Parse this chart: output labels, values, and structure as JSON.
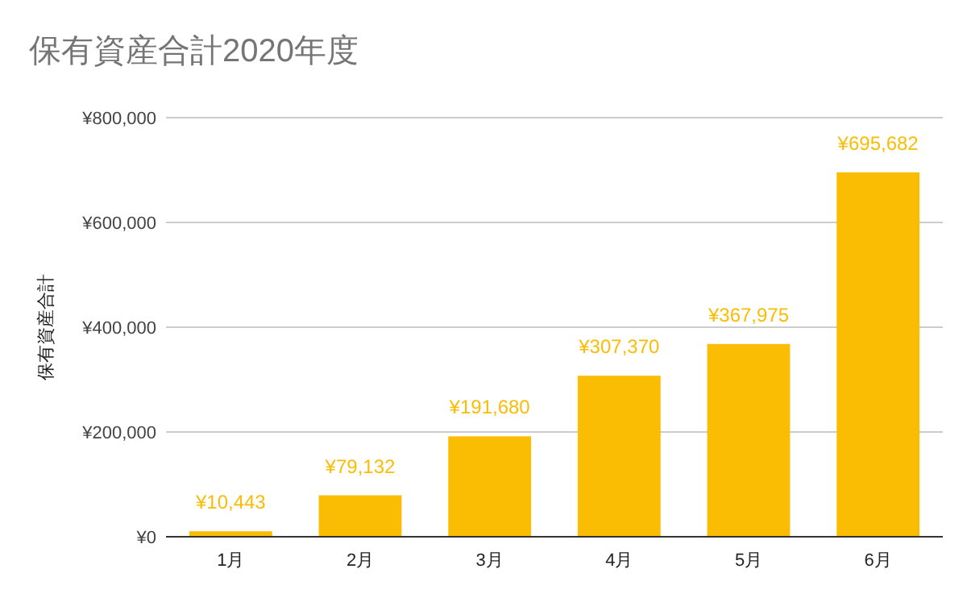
{
  "chart_data": {
    "type": "bar",
    "title": "保有資産合計2020年度",
    "ylabel": "保有資産合計",
    "categories": [
      "1月",
      "2月",
      "3月",
      "4月",
      "5月",
      "6月"
    ],
    "values": [
      10443,
      79132,
      191680,
      307370,
      367975,
      695682
    ],
    "color": "#fbbc04",
    "ylim": [
      0,
      800000
    ],
    "yticks": [
      {
        "value": 0,
        "label": "¥0"
      },
      {
        "value": 200000,
        "label": "¥200,000"
      },
      {
        "value": 400000,
        "label": "¥400,000"
      },
      {
        "value": 600000,
        "label": "¥600,000"
      },
      {
        "value": 800000,
        "label": "¥800,000"
      }
    ],
    "grid": true,
    "data_labels": true,
    "value_labels": [
      "¥10,443",
      "¥79,132",
      "¥191,680",
      "¥307,370",
      "¥367,975",
      "¥695,682"
    ]
  }
}
